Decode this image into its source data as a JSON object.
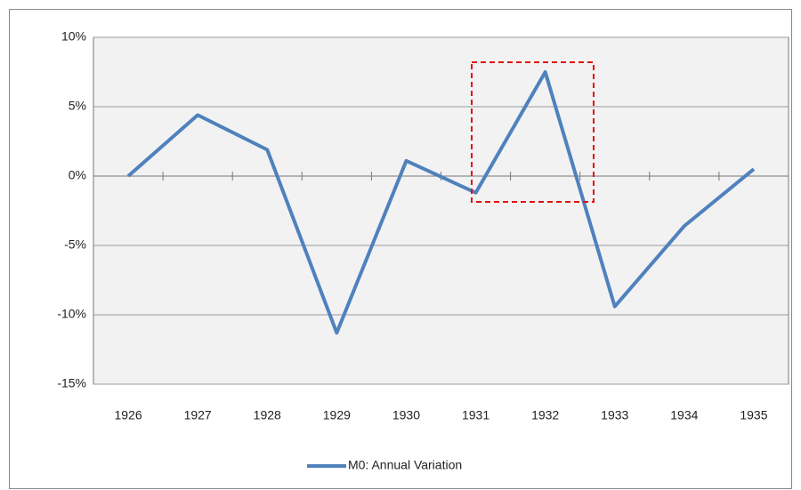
{
  "chart_data": {
    "type": "line",
    "categories": [
      "1926",
      "1927",
      "1928",
      "1929",
      "1930",
      "1931",
      "1932",
      "1933",
      "1934",
      "1935"
    ],
    "series": [
      {
        "name": "M0: Annual Variation",
        "color": "#4f81bd",
        "values": [
          0,
          4.4,
          1.9,
          -11.3,
          1.1,
          -1.2,
          7.5,
          -9.4,
          -3.6,
          0.5
        ]
      }
    ],
    "ylim": [
      -15,
      10
    ],
    "yticks": [
      {
        "value": -15,
        "label": "-15%"
      },
      {
        "value": -10,
        "label": "-10%"
      },
      {
        "value": -5,
        "label": "-5%"
      },
      {
        "value": 0,
        "label": "0%"
      },
      {
        "value": 5,
        "label": "5%"
      },
      {
        "value": 10,
        "label": "10%"
      }
    ],
    "grid": true,
    "legend": "bottom"
  }
}
